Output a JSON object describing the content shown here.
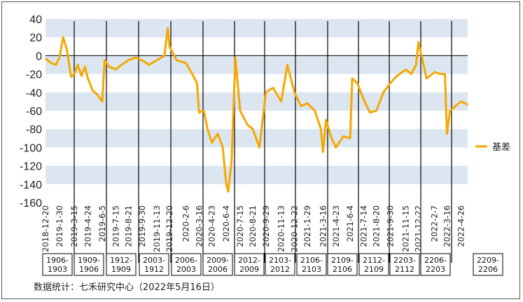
{
  "chart_data": {
    "type": "line",
    "ylim": [
      -160,
      40
    ],
    "yticks": [
      40,
      20,
      0,
      -20,
      -40,
      -60,
      -80,
      -100,
      -120,
      -140,
      -160
    ],
    "grid": "alternating horizontal bands",
    "legend_position": "right",
    "colors": {
      "series": "#F5A800",
      "band": "#DCE6F1",
      "divider": "#000000"
    },
    "x_tick_labels": [
      "2018-12-20",
      "2019-1-30",
      "2019-3-15",
      "2019-4-24",
      "2019-6-5",
      "2019-7-15",
      "2019-8-21",
      "2019-9-30",
      "2019-11-13",
      "2019-12-20",
      "2020-2-6",
      "2020-3-16",
      "2020-4-23",
      "2020-6-4",
      "2020-7-15",
      "2020-8-21",
      "2020-9-29",
      "2020-11-13",
      "2020-12-22",
      "2021-1-29",
      "2021-3-16",
      "2021-4-23",
      "2021-6-4",
      "2021-7-14",
      "2021-8-20",
      "2021-9-30",
      "2021-11-15",
      "2021-12-22",
      "2022-2-7",
      "2022-3-16",
      "2022-4-26"
    ],
    "contracts": [
      "1906-1903",
      "1909-1906",
      "1912-1909",
      "2003-1912",
      "2006-2003",
      "2009-2006",
      "2012-2009",
      "2103-2012",
      "2106-2103",
      "2109-2106",
      "2112-2109",
      "2203-2112",
      "2206-2203",
      "2209-2206"
    ],
    "series": [
      {
        "name": "基差",
        "x": [
          "2018-12-20",
          "2019-1-5",
          "2019-1-20",
          "2019-1-30",
          "2019-2-10",
          "2019-2-20",
          "2019-3-5",
          "2019-3-15",
          "2019-3-25",
          "2019-4-5",
          "2019-4-15",
          "2019-4-24",
          "2019-5-8",
          "2019-5-20",
          "2019-6-5",
          "2019-6-12",
          "2019-6-25",
          "2019-7-15",
          "2019-8-1",
          "2019-8-21",
          "2019-9-10",
          "2019-9-30",
          "2019-10-20",
          "2019-11-13",
          "2019-12-5",
          "2019-12-15",
          "2019-12-20",
          "2020-1-10",
          "2020-2-6",
          "2020-2-25",
          "2020-3-10",
          "2020-3-16",
          "2020-3-30",
          "2020-4-10",
          "2020-4-23",
          "2020-5-10",
          "2020-5-25",
          "2020-6-4",
          "2020-6-10",
          "2020-6-20",
          "2020-7-1",
          "2020-7-15",
          "2020-8-5",
          "2020-8-21",
          "2020-9-10",
          "2020-9-29",
          "2020-10-20",
          "2020-11-13",
          "2020-12-1",
          "2020-12-22",
          "2021-1-10",
          "2021-1-29",
          "2021-2-20",
          "2021-3-10",
          "2021-3-16",
          "2021-3-25",
          "2021-4-10",
          "2021-4-23",
          "2021-5-15",
          "2021-6-4",
          "2021-6-10",
          "2021-6-25",
          "2021-7-14",
          "2021-8-1",
          "2021-8-20",
          "2021-9-10",
          "2021-9-30",
          "2021-10-20",
          "2021-11-15",
          "2021-12-1",
          "2021-12-15",
          "2021-12-22",
          "2022-1-15",
          "2022-2-7",
          "2022-2-25",
          "2022-3-10",
          "2022-3-16",
          "2022-3-25",
          "2022-4-10",
          "2022-4-26",
          "2022-5-10",
          "2022-5-16"
        ],
        "values": [
          -3,
          -8,
          -10,
          -2,
          20,
          8,
          -23,
          -20,
          -10,
          -22,
          -12,
          -25,
          -38,
          -42,
          -50,
          -5,
          -12,
          -15,
          -10,
          -5,
          -2,
          -5,
          -10,
          -5,
          0,
          30,
          10,
          -5,
          -8,
          -20,
          -30,
          -62,
          -60,
          -80,
          -95,
          -85,
          -100,
          -140,
          -148,
          -115,
          -2,
          -60,
          -75,
          -80,
          -100,
          -40,
          -35,
          -50,
          -10,
          -40,
          -55,
          -52,
          -60,
          -80,
          -105,
          -70,
          -90,
          -100,
          -88,
          -90,
          -25,
          -30,
          -48,
          -62,
          -60,
          -40,
          -30,
          -22,
          -15,
          -20,
          -10,
          15,
          -25,
          -18,
          -20,
          -20,
          -85,
          -60,
          -55,
          -50,
          -52,
          -54
        ]
      }
    ]
  },
  "legend": {
    "label": "基差"
  },
  "footer": {
    "source": "数据统计：七禾研究中心（2022年5月16日）"
  }
}
